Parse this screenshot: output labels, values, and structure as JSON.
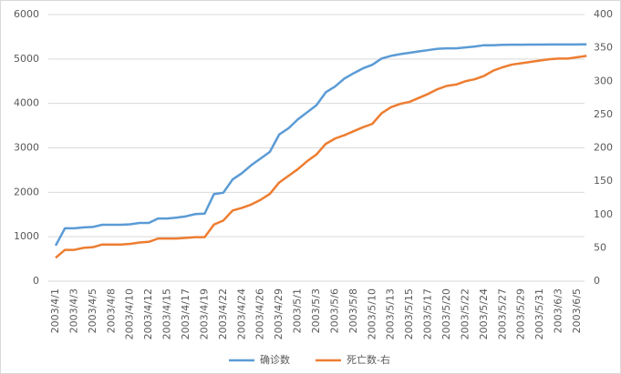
{
  "chart_data": {
    "type": "line",
    "categories": [
      "2003/4/1",
      null,
      "2003/4/3",
      null,
      "2003/4/5",
      null,
      "2003/4/8",
      null,
      "2003/4/10",
      null,
      "2003/4/12",
      null,
      "2003/4/15",
      null,
      "2003/4/17",
      null,
      "2003/4/19",
      null,
      "2003/4/22",
      null,
      "2003/4/24",
      null,
      "2003/4/26",
      null,
      "2003/4/29",
      null,
      "2003/5/1",
      null,
      "2003/5/3",
      null,
      "2003/5/6",
      null,
      "2003/5/8",
      null,
      "2003/5/10",
      null,
      "2003/5/13",
      null,
      "2003/5/15",
      null,
      "2003/5/17",
      null,
      "2003/5/20",
      null,
      "2003/5/22",
      null,
      "2003/5/24",
      null,
      "2003/5/27",
      null,
      "2003/5/29",
      null,
      "2003/5/31",
      null,
      "2003/6/3",
      null,
      "2003/6/5",
      null
    ],
    "series": [
      {
        "name": "确诊数",
        "color": "#5b9bd5",
        "values": [
          800,
          1190,
          1190,
          1210,
          1220,
          1270,
          1270,
          1270,
          1280,
          1310,
          1310,
          1410,
          1410,
          1430,
          1460,
          1510,
          1520,
          1960,
          1990,
          2290,
          2430,
          2610,
          2760,
          2910,
          3300,
          3440,
          3640,
          3800,
          3960,
          4250,
          4380,
          4560,
          4680,
          4790,
          4870,
          5010,
          5070,
          5110,
          5140,
          5170,
          5200,
          5230,
          5240,
          5240,
          5260,
          5280,
          5310,
          5310,
          5320,
          5321,
          5322,
          5323,
          5325,
          5326,
          5327,
          5328,
          5328,
          5329
        ]
      },
      {
        "name": "死亡数-右",
        "color": "#ed7d31",
        "axis": "y2",
        "values": [
          35,
          47,
          47,
          50,
          51,
          55,
          55,
          55,
          56,
          58,
          59,
          64,
          64,
          64,
          65,
          66,
          66,
          85,
          91,
          106,
          110,
          115,
          122,
          131,
          148,
          158,
          168,
          180,
          190,
          206,
          214,
          219,
          225,
          231,
          236,
          252,
          261,
          266,
          269,
          275,
          281,
          288,
          293,
          295,
          300,
          303,
          308,
          316,
          321,
          325,
          327,
          329,
          331,
          333,
          334,
          334,
          336,
          338
        ]
      }
    ],
    "ylim": [
      0,
      6000
    ],
    "yticks": [
      0,
      1000,
      2000,
      3000,
      4000,
      5000,
      6000
    ],
    "y2lim": [
      0,
      400
    ],
    "y2ticks": [
      0,
      50,
      100,
      150,
      200,
      250,
      300,
      350,
      400
    ],
    "grid": true,
    "legend": "bottom"
  }
}
